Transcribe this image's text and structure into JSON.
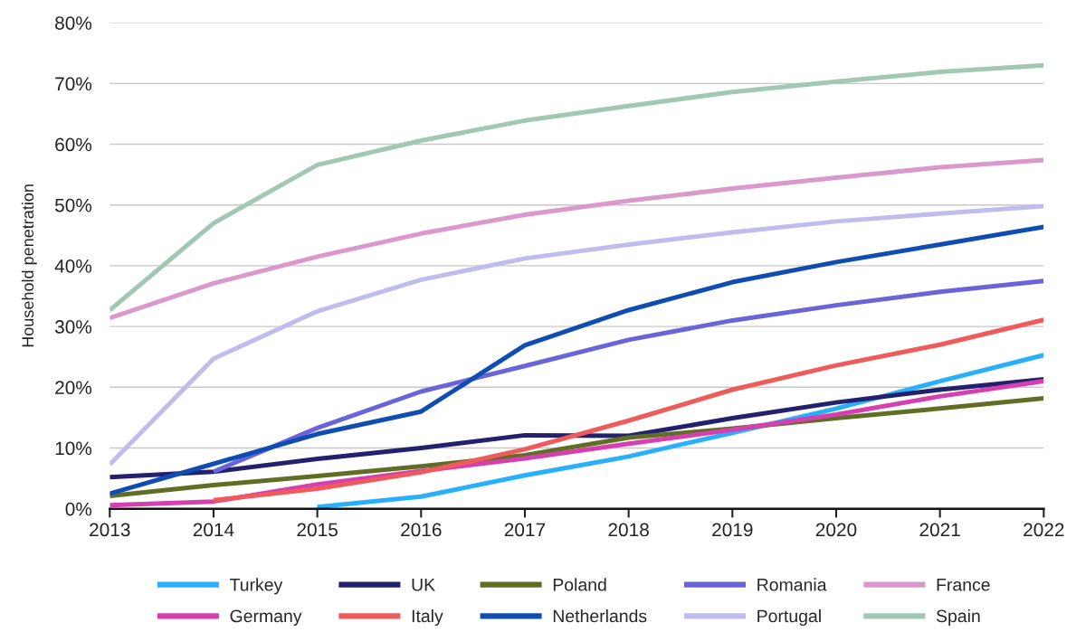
{
  "chart_data": {
    "type": "line",
    "ylabel": "Household penetration",
    "categories": [
      "2013",
      "2014",
      "2015",
      "2016",
      "2017",
      "2018",
      "2019",
      "2020",
      "2021",
      "2022"
    ],
    "ylim": [
      0,
      80
    ],
    "yticks": [
      {
        "value": 0,
        "label": "0%"
      },
      {
        "value": 10,
        "label": "10%"
      },
      {
        "value": 20,
        "label": "20%"
      },
      {
        "value": 30,
        "label": "30%"
      },
      {
        "value": 40,
        "label": "40%"
      },
      {
        "value": 50,
        "label": "50%"
      },
      {
        "value": 60,
        "label": "60%"
      },
      {
        "value": 70,
        "label": "70%"
      },
      {
        "value": 80,
        "label": "80%"
      }
    ],
    "grid": "y",
    "legend": "bottom",
    "marker": "none",
    "line_style": "solid",
    "series": [
      {
        "name": "Turkey",
        "color": "#29b0fb",
        "values": [
          null,
          null,
          0.3,
          2,
          5.5,
          8.6,
          12.5,
          16.5,
          21,
          25.3
        ]
      },
      {
        "name": "UK",
        "color": "#23206e",
        "values": [
          5.2,
          6.1,
          8.2,
          10,
          12.1,
          12,
          14.9,
          17.5,
          19.6,
          21.3
        ]
      },
      {
        "name": "Poland",
        "color": "#5f6e23",
        "values": [
          2.1,
          3.9,
          5.4,
          7,
          8.8,
          11.7,
          13.2,
          14.9,
          16.5,
          18.2
        ]
      },
      {
        "name": "Romania",
        "color": "#6b64d8",
        "values": [
          null,
          6.1,
          13.3,
          19.3,
          23.5,
          27.8,
          31,
          33.5,
          35.7,
          37.5
        ]
      },
      {
        "name": "France",
        "color": "#da98cc",
        "values": [
          31.4,
          37.1,
          41.5,
          45.3,
          48.4,
          50.7,
          52.7,
          54.5,
          56.2,
          57.4
        ]
      },
      {
        "name": "Germany",
        "color": "#d63fb0",
        "values": [
          0.6,
          1.2,
          4,
          6.2,
          8.3,
          10.7,
          13,
          15.5,
          18.5,
          21
        ]
      },
      {
        "name": "Italy",
        "color": "#ef5b5b",
        "values": [
          null,
          1.4,
          3.3,
          6,
          9.8,
          14.5,
          19.6,
          23.6,
          27,
          31.1
        ]
      },
      {
        "name": "Netherlands",
        "color": "#0f4db3",
        "values": [
          2.5,
          7.4,
          12.3,
          16,
          26.9,
          32.7,
          37.3,
          40.6,
          43.5,
          46.4
        ]
      },
      {
        "name": "Portugal",
        "color": "#c0bdee",
        "values": [
          7.3,
          24.7,
          32.5,
          37.7,
          41.2,
          43.5,
          45.5,
          47.3,
          48.6,
          49.8
        ]
      },
      {
        "name": "Spain",
        "color": "#a0c8b3",
        "values": [
          32.7,
          47,
          56.6,
          60.6,
          63.9,
          66.3,
          68.6,
          70.3,
          71.9,
          73
        ]
      }
    ]
  }
}
